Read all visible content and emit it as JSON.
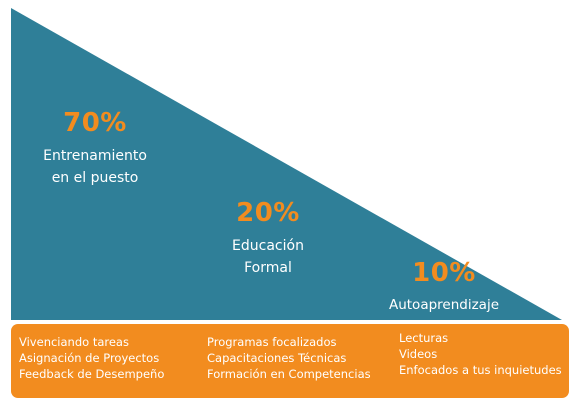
{
  "colors": {
    "triangle": "#2f7f98",
    "accent": "#f28c1f",
    "text_on_dark": "#ffffff"
  },
  "blocks": [
    {
      "percent": "70%",
      "lines": [
        "Entrenamiento",
        "en el puesto"
      ]
    },
    {
      "percent": "20%",
      "lines": [
        "Educación",
        "Formal"
      ]
    },
    {
      "percent": "10%",
      "lines": [
        "Autoaprendizaje"
      ]
    }
  ],
  "bottom_bar": {
    "columns": [
      {
        "items": [
          "Vivenciando tareas",
          "Asignación de Proyectos",
          "Feedback de Desempeño"
        ]
      },
      {
        "items": [
          "Programas focalizados",
          "Capacitaciones Técnicas",
          "Formación en Competencias"
        ]
      },
      {
        "items": [
          "Lecturas",
          "Videos",
          "Enfocados a tus inquietudes"
        ]
      }
    ]
  }
}
